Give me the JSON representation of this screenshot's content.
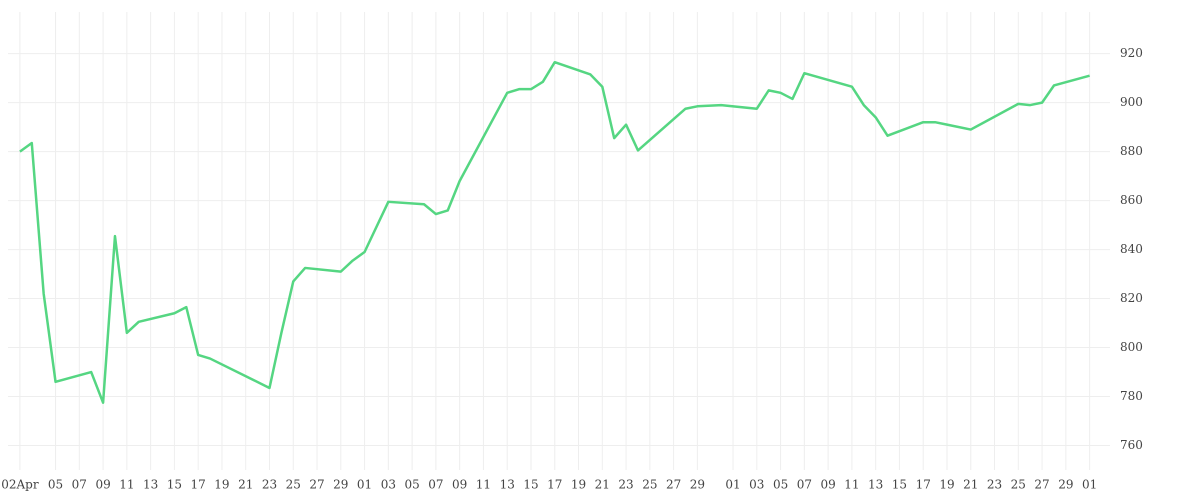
{
  "chart_data": {
    "type": "line",
    "x": [
      "04-02",
      "04-03",
      "04-04",
      "04-05",
      "04-08",
      "04-09",
      "04-10",
      "04-11",
      "04-12",
      "04-15",
      "04-16",
      "04-17",
      "04-18",
      "04-23",
      "04-24",
      "04-25",
      "04-26",
      "04-29",
      "04-30",
      "05-01",
      "05-03",
      "05-06",
      "05-07",
      "05-08",
      "05-09",
      "05-13",
      "05-14",
      "05-15",
      "05-16",
      "05-17",
      "05-20",
      "05-21",
      "05-22",
      "05-23",
      "05-24",
      "05-28",
      "05-29",
      "05-31",
      "06-03",
      "06-04",
      "06-05",
      "06-06",
      "06-07",
      "06-11",
      "06-12",
      "06-13",
      "06-14",
      "06-17",
      "06-18",
      "06-19",
      "06-21",
      "06-25",
      "06-26",
      "06-27",
      "06-28",
      "07-01"
    ],
    "series": [
      {
        "color": "#55d682",
        "values": [
          880,
          883.5,
          822,
          786,
          790,
          777.5,
          845.5,
          806,
          810.5,
          814,
          816.5,
          797,
          795.5,
          783.5,
          806,
          827,
          832.5,
          831,
          835.5,
          839,
          859.5,
          858.5,
          854.5,
          856,
          868,
          904,
          905.5,
          905.5,
          908.5,
          916.5,
          911.5,
          906.5,
          885.5,
          891,
          880.5,
          897.5,
          898.5,
          899,
          897.5,
          905,
          904,
          901.5,
          912,
          906.5,
          899,
          894,
          886.5,
          892,
          892,
          891,
          889,
          899.5,
          899,
          900,
          907,
          911
        ]
      }
    ],
    "xlim": [
      "04-01",
      "07-02"
    ],
    "xticks": [
      {
        "value": "04-02",
        "label": "02Apr"
      },
      {
        "value": "04-05",
        "label": "05"
      },
      {
        "value": "04-07",
        "label": "07"
      },
      {
        "value": "04-09",
        "label": "09"
      },
      {
        "value": "04-11",
        "label": "11"
      },
      {
        "value": "04-13",
        "label": "13"
      },
      {
        "value": "04-15",
        "label": "15"
      },
      {
        "value": "04-17",
        "label": "17"
      },
      {
        "value": "04-19",
        "label": "19"
      },
      {
        "value": "04-21",
        "label": "21"
      },
      {
        "value": "04-23",
        "label": "23"
      },
      {
        "value": "04-25",
        "label": "25"
      },
      {
        "value": "04-27",
        "label": "27"
      },
      {
        "value": "04-29",
        "label": "29"
      },
      {
        "value": "05-01",
        "label": "01"
      },
      {
        "value": "05-03",
        "label": "03"
      },
      {
        "value": "05-05",
        "label": "05"
      },
      {
        "value": "05-07",
        "label": "07"
      },
      {
        "value": "05-09",
        "label": "09"
      },
      {
        "value": "05-11",
        "label": "11"
      },
      {
        "value": "05-13",
        "label": "13"
      },
      {
        "value": "05-15",
        "label": "15"
      },
      {
        "value": "05-17",
        "label": "17"
      },
      {
        "value": "05-19",
        "label": "19"
      },
      {
        "value": "05-21",
        "label": "21"
      },
      {
        "value": "05-23",
        "label": "23"
      },
      {
        "value": "05-25",
        "label": "25"
      },
      {
        "value": "05-27",
        "label": "27"
      },
      {
        "value": "05-29",
        "label": "29"
      },
      {
        "value": "06-01",
        "label": "01"
      },
      {
        "value": "06-03",
        "label": "03"
      },
      {
        "value": "06-05",
        "label": "05"
      },
      {
        "value": "06-07",
        "label": "07"
      },
      {
        "value": "06-09",
        "label": "09"
      },
      {
        "value": "06-11",
        "label": "11"
      },
      {
        "value": "06-13",
        "label": "13"
      },
      {
        "value": "06-15",
        "label": "15"
      },
      {
        "value": "06-17",
        "label": "17"
      },
      {
        "value": "06-19",
        "label": "19"
      },
      {
        "value": "06-21",
        "label": "21"
      },
      {
        "value": "06-23",
        "label": "23"
      },
      {
        "value": "06-25",
        "label": "25"
      },
      {
        "value": "06-27",
        "label": "27"
      },
      {
        "value": "06-29",
        "label": "29"
      },
      {
        "value": "07-01",
        "label": "01"
      }
    ],
    "ylim": [
      750,
      937
    ],
    "yticks": [
      760,
      780,
      800,
      820,
      840,
      860,
      880,
      900,
      920
    ],
    "grid": true
  }
}
